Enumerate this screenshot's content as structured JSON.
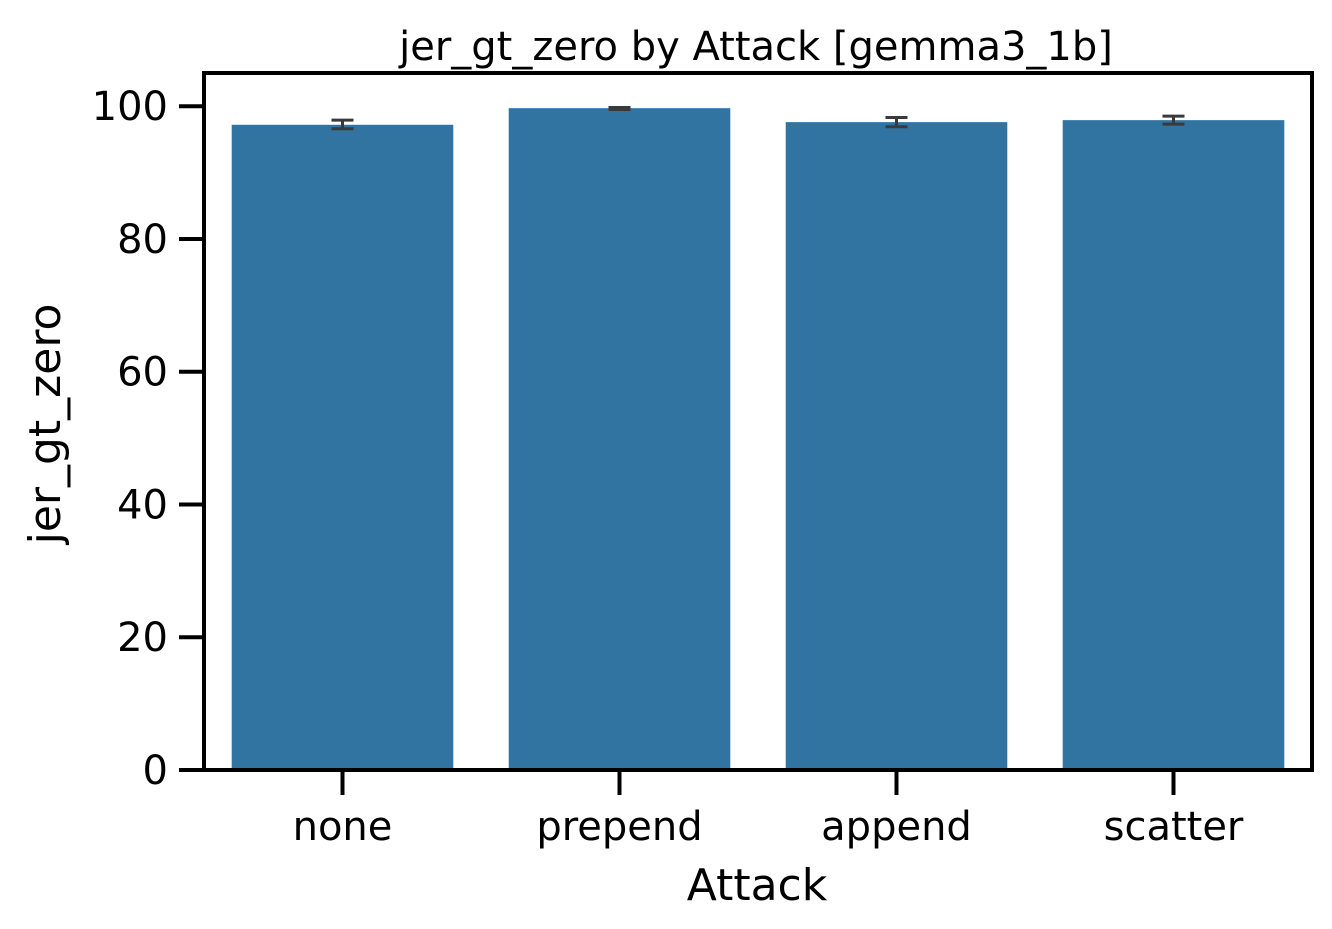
{
  "chart_data": {
    "type": "bar",
    "title": "jer_gt_zero by Attack [gemma3_1b]",
    "xlabel": "Attack",
    "ylabel": "jer_gt_zero",
    "categories": [
      "none",
      "prepend",
      "append",
      "scatter"
    ],
    "values": [
      97.2,
      99.7,
      97.6,
      97.9
    ],
    "error_low": [
      96.6,
      99.5,
      96.9,
      97.3
    ],
    "error_high": [
      97.9,
      99.8,
      98.3,
      98.5
    ],
    "ylim": [
      0,
      105
    ],
    "yticks": [
      0,
      20,
      40,
      60,
      80,
      100
    ],
    "grid": false,
    "bar_color": "#3274a1",
    "error_color": "#3a3a3a"
  }
}
